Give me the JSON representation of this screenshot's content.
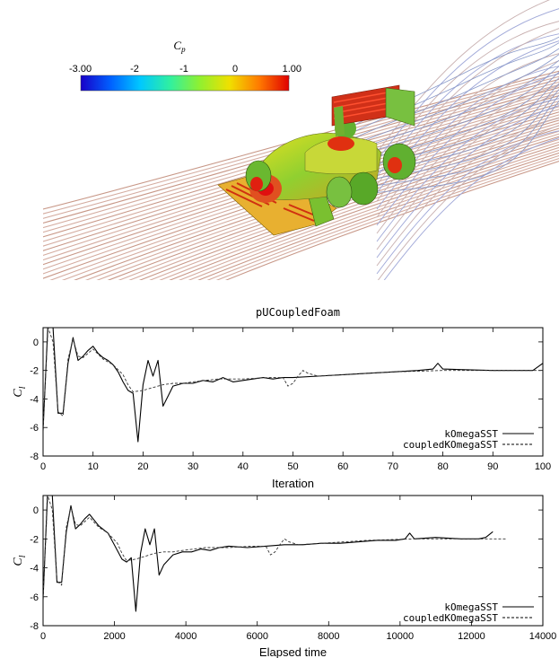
{
  "colorbar": {
    "symbol": "C",
    "subscript": "p",
    "ticks": [
      "-3.00",
      "-2",
      "-1",
      "0",
      "1.00"
    ],
    "colors": [
      "#1800c8",
      "#0060ff",
      "#00c8ff",
      "#30f0a0",
      "#90f030",
      "#f0e000",
      "#ff7a00",
      "#e00000"
    ]
  },
  "chart_data": [
    {
      "type": "line",
      "title": "pUCoupledFoam",
      "xlabel": "Iteration",
      "ylabel_symbol": "C",
      "ylabel_subscript": "l",
      "xlim": [
        0,
        100
      ],
      "ylim": [
        -8,
        1
      ],
      "xticks": [
        0,
        10,
        20,
        30,
        40,
        50,
        60,
        70,
        80,
        90,
        100
      ],
      "yticks": [
        0,
        -2,
        -4,
        -6,
        -8
      ],
      "legend_position": "bottom-right",
      "series": [
        {
          "name": "kOmegaSST",
          "style": "solid",
          "x": [
            0,
            1,
            2,
            3,
            4,
            5,
            6,
            7,
            8,
            9,
            10,
            11,
            12,
            13,
            14,
            15,
            16,
            17,
            18,
            19,
            20,
            21,
            22,
            23,
            24,
            25,
            26,
            28,
            30,
            32,
            34,
            36,
            38,
            40,
            42,
            44,
            46,
            48,
            50,
            55,
            60,
            65,
            70,
            75,
            78,
            79,
            80,
            85,
            90,
            95,
            98,
            100
          ],
          "y": [
            -6.2,
            1.5,
            1.0,
            -5.0,
            -5.0,
            -1.5,
            0.3,
            -1.3,
            -1.0,
            -0.6,
            -0.3,
            -0.8,
            -1.1,
            -1.3,
            -1.6,
            -2.1,
            -2.8,
            -3.4,
            -3.6,
            -7.0,
            -3.0,
            -1.3,
            -2.4,
            -1.3,
            -4.5,
            -3.8,
            -3.1,
            -2.9,
            -2.9,
            -2.7,
            -2.8,
            -2.5,
            -2.8,
            -2.7,
            -2.6,
            -2.5,
            -2.6,
            -2.5,
            -2.5,
            -2.4,
            -2.3,
            -2.2,
            -2.1,
            -2.0,
            -1.9,
            -1.5,
            -1.9,
            -1.95,
            -2.0,
            -2.0,
            -2.0,
            -1.5
          ]
        },
        {
          "name": "coupledKOmegaSST",
          "style": "dashed",
          "x": [
            0,
            1,
            2,
            3,
            4,
            5,
            6,
            7,
            8,
            9,
            10,
            12,
            14,
            16,
            17,
            18,
            20,
            22,
            24,
            26,
            28,
            30,
            35,
            40,
            45,
            48,
            49,
            50,
            51,
            52,
            53,
            55,
            60,
            70,
            80,
            90,
            100
          ],
          "y": [
            -6.0,
            1.0,
            0.0,
            -4.9,
            -5.2,
            -1.2,
            0.2,
            -1.0,
            -1.1,
            -0.8,
            -0.5,
            -1.2,
            -1.6,
            -2.3,
            -3.0,
            -3.5,
            -3.4,
            -3.2,
            -3.0,
            -2.9,
            -2.9,
            -2.8,
            -2.6,
            -2.6,
            -2.5,
            -2.5,
            -3.1,
            -2.9,
            -2.4,
            -2.0,
            -2.2,
            -2.4,
            -2.3,
            -2.1,
            -2.0,
            -2.0,
            -2.0
          ]
        }
      ]
    },
    {
      "type": "line",
      "title": "",
      "xlabel": "Elapsed time",
      "ylabel_symbol": "C",
      "ylabel_subscript": "l",
      "xlim": [
        0,
        14000
      ],
      "ylim": [
        -8,
        1
      ],
      "xticks": [
        0,
        2000,
        4000,
        6000,
        8000,
        10000,
        12000,
        14000
      ],
      "yticks": [
        0,
        -2,
        -4,
        -6,
        -8
      ],
      "legend_position": "bottom-right",
      "series": [
        {
          "name": "kOmegaSST",
          "style": "solid",
          "x": [
            0,
            130,
            260,
            390,
            520,
            650,
            780,
            910,
            1040,
            1170,
            1300,
            1560,
            1820,
            2080,
            2210,
            2340,
            2470,
            2600,
            2730,
            2860,
            2990,
            3120,
            3250,
            3380,
            3640,
            3900,
            4160,
            4420,
            4680,
            4940,
            5200,
            5720,
            6240,
            6760,
            7280,
            7800,
            8320,
            8840,
            9360,
            9880,
            10140,
            10270,
            10400,
            11000,
            11700,
            12200,
            12400,
            12600
          ],
          "y": [
            -6.2,
            1.5,
            1.0,
            -5.0,
            -5.0,
            -1.5,
            0.3,
            -1.3,
            -1.0,
            -0.6,
            -0.3,
            -1.1,
            -1.6,
            -2.8,
            -3.4,
            -3.6,
            -3.3,
            -7.0,
            -3.0,
            -1.3,
            -2.4,
            -1.3,
            -4.5,
            -3.8,
            -3.1,
            -2.9,
            -2.9,
            -2.7,
            -2.8,
            -2.6,
            -2.5,
            -2.6,
            -2.5,
            -2.4,
            -2.4,
            -2.3,
            -2.3,
            -2.2,
            -2.1,
            -2.1,
            -2.0,
            -1.6,
            -2.0,
            -1.9,
            -2.0,
            -2.0,
            -1.9,
            -1.5
          ]
        },
        {
          "name": "coupledKOmegaSST",
          "style": "dashed",
          "x": [
            0,
            130,
            260,
            390,
            520,
            650,
            780,
            910,
            1040,
            1170,
            1300,
            1560,
            1820,
            2080,
            2210,
            2340,
            2600,
            2860,
            3120,
            3380,
            3640,
            3900,
            4550,
            5200,
            5850,
            6240,
            6370,
            6500,
            6630,
            6760,
            6890,
            7150,
            7800,
            9100,
            10400,
            11700,
            13000
          ],
          "y": [
            -6.0,
            1.0,
            0.0,
            -4.9,
            -5.2,
            -1.2,
            0.2,
            -1.0,
            -1.1,
            -0.8,
            -0.5,
            -1.2,
            -1.6,
            -2.3,
            -3.0,
            -3.5,
            -3.4,
            -3.2,
            -3.0,
            -2.9,
            -2.9,
            -2.8,
            -2.6,
            -2.6,
            -2.5,
            -2.5,
            -3.1,
            -2.9,
            -2.4,
            -2.0,
            -2.2,
            -2.4,
            -2.3,
            -2.1,
            -2.0,
            -2.0,
            -2.0
          ]
        }
      ]
    }
  ]
}
